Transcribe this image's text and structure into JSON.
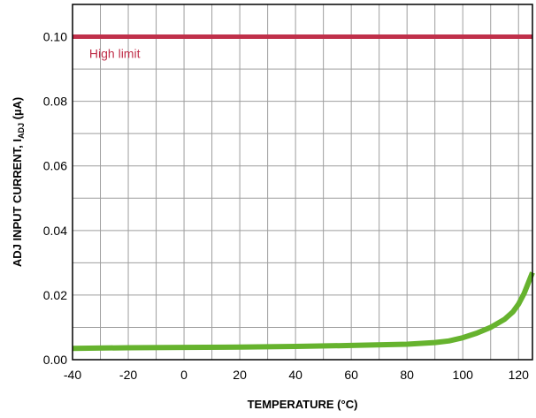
{
  "chart_data": {
    "type": "line",
    "xlabel": "TEMPERATURE (°C)",
    "ylabel_main": "ADJ INPUT CURRENT, I",
    "ylabel_sub": "ADJ",
    "ylabel_tail": " (µA)",
    "xlim": [
      -40,
      125
    ],
    "ylim": [
      0,
      0.11
    ],
    "xticks": [
      -40,
      -20,
      0,
      20,
      40,
      60,
      80,
      100,
      120
    ],
    "yticks": [
      0.0,
      0.02,
      0.04,
      0.06,
      0.08,
      0.1
    ],
    "ytick_labels": [
      "0.00",
      "0.02",
      "0.04",
      "0.06",
      "0.08",
      "0.10"
    ],
    "grid": true,
    "series": [
      {
        "name": "High limit",
        "color": "#c0304a",
        "x": [
          -40,
          125
        ],
        "y": [
          0.1,
          0.1
        ]
      },
      {
        "color": "#66b32e",
        "x": [
          -40,
          -20,
          0,
          20,
          40,
          60,
          80,
          90,
          95,
          100,
          105,
          110,
          115,
          118,
          120,
          122,
          125
        ],
        "y": [
          0.0035,
          0.0037,
          0.0038,
          0.0039,
          0.0041,
          0.0044,
          0.0048,
          0.0053,
          0.0058,
          0.0068,
          0.0082,
          0.01,
          0.0125,
          0.0148,
          0.0172,
          0.0205,
          0.027
        ]
      }
    ],
    "annotations": [
      {
        "text": "High limit",
        "x": -34,
        "y": 0.0935,
        "color": "#c0304a"
      }
    ]
  }
}
